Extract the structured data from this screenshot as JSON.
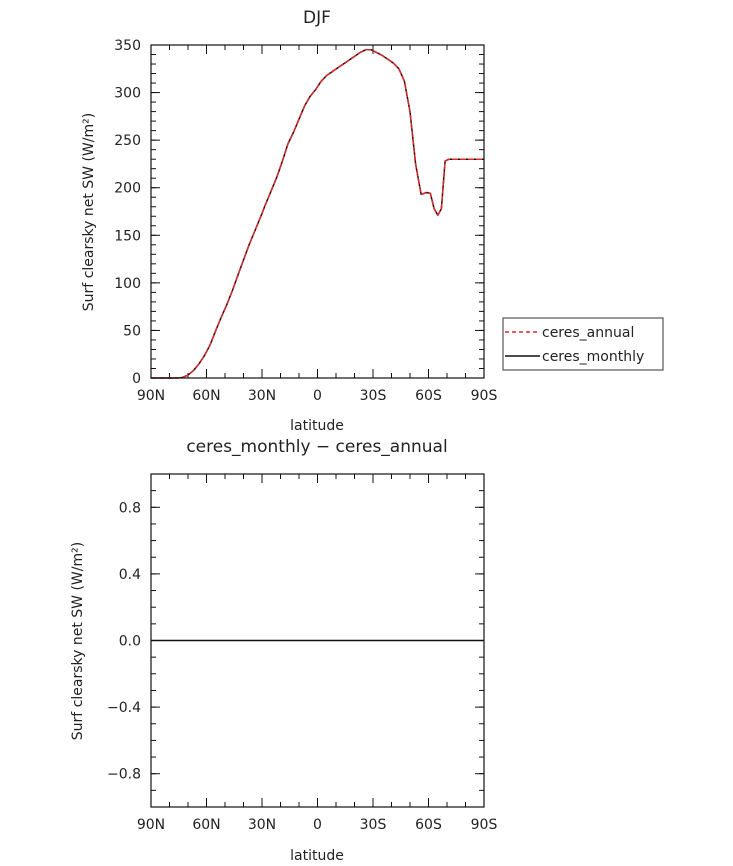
{
  "chart_data": [
    {
      "type": "line",
      "title": "DJF",
      "xlabel": "latitude",
      "ylabel": "Surf clearsky net SW (W/m²)",
      "x_ticks": [
        "90N",
        "60N",
        "30N",
        "0",
        "30S",
        "60S",
        "90S"
      ],
      "y_ticks": [
        "0",
        "50",
        "100",
        "150",
        "200",
        "250",
        "300",
        "350"
      ],
      "xlim": [
        90,
        -90
      ],
      "ylim": [
        0,
        350
      ],
      "legend": {
        "position": "right",
        "entries": [
          "ceres_annual",
          "ceres_monthly"
        ]
      },
      "series": [
        {
          "name": "ceres_annual",
          "color": "#e0282b",
          "dash": "dashed",
          "x": [
            90,
            85,
            80,
            76,
            73,
            70,
            67,
            64,
            61,
            58,
            55,
            52,
            49,
            46,
            43,
            40,
            37,
            34,
            31,
            28,
            25,
            22,
            19,
            16,
            13,
            10,
            7,
            4,
            1,
            -2,
            -5,
            -8,
            -11,
            -14,
            -17,
            -20,
            -23,
            -26,
            -29,
            -32,
            -35,
            -38,
            -41,
            -44,
            -47,
            -50,
            -53,
            -56,
            -59,
            -61,
            -63,
            -65,
            -67,
            -69,
            -71,
            -73,
            -75,
            -77,
            -79,
            -80,
            -82,
            -84,
            -86,
            -88,
            -90
          ],
          "y": [
            0,
            0,
            0,
            0,
            0.5,
            3,
            8,
            15,
            24,
            35,
            50,
            64,
            77,
            92,
            108,
            124,
            140,
            154,
            168,
            183,
            197,
            211,
            228,
            246,
            258,
            272,
            286,
            296,
            303,
            312,
            318,
            322,
            326,
            330,
            334,
            338,
            342,
            345,
            345,
            342,
            339,
            335,
            331,
            325,
            312,
            280,
            225,
            193,
            195,
            194,
            178,
            171,
            178,
            228,
            230,
            230,
            230,
            230,
            230,
            230,
            230,
            230,
            230,
            230,
            230
          ]
        },
        {
          "name": "ceres_monthly",
          "color": "#111111",
          "dash": "solid",
          "x": [
            90,
            85,
            80,
            76,
            73,
            70,
            67,
            64,
            61,
            58,
            55,
            52,
            49,
            46,
            43,
            40,
            37,
            34,
            31,
            28,
            25,
            22,
            19,
            16,
            13,
            10,
            7,
            4,
            1,
            -2,
            -5,
            -8,
            -11,
            -14,
            -17,
            -20,
            -23,
            -26,
            -29,
            -32,
            -35,
            -38,
            -41,
            -44,
            -47,
            -50,
            -53,
            -56,
            -59,
            -61,
            -63,
            -65,
            -67,
            -69,
            -71,
            -73,
            -75,
            -77,
            -79,
            -80,
            -82,
            -84,
            -86,
            -88,
            -90
          ],
          "y": [
            0,
            0,
            0,
            0,
            0.5,
            3,
            8,
            15,
            24,
            35,
            50,
            64,
            77,
            92,
            108,
            124,
            140,
            154,
            168,
            183,
            197,
            211,
            228,
            246,
            258,
            272,
            286,
            296,
            303,
            312,
            318,
            322,
            326,
            330,
            334,
            338,
            342,
            345,
            345,
            342,
            339,
            335,
            331,
            325,
            312,
            280,
            225,
            193,
            195,
            194,
            178,
            171,
            178,
            228,
            230,
            230,
            230,
            230,
            230,
            230,
            230,
            230,
            230,
            230,
            230
          ]
        }
      ]
    },
    {
      "type": "line",
      "title": "ceres_monthly − ceres_annual",
      "xlabel": "latitude",
      "ylabel": "Surf clearsky net SW (W/m²)",
      "x_ticks": [
        "90N",
        "60N",
        "30N",
        "0",
        "30S",
        "60S",
        "90S"
      ],
      "y_ticks": [
        "0.8",
        "0.4",
        "0.0",
        "−0.4",
        "−0.8"
      ],
      "y_tick_values": [
        0.8,
        0.4,
        0.0,
        -0.4,
        -0.8
      ],
      "xlim": [
        90,
        -90
      ],
      "ylim": [
        -1,
        1
      ],
      "series": [
        {
          "color": "#111111",
          "dash": "solid",
          "x": [
            90,
            -90
          ],
          "y": [
            0,
            0
          ]
        }
      ]
    }
  ]
}
